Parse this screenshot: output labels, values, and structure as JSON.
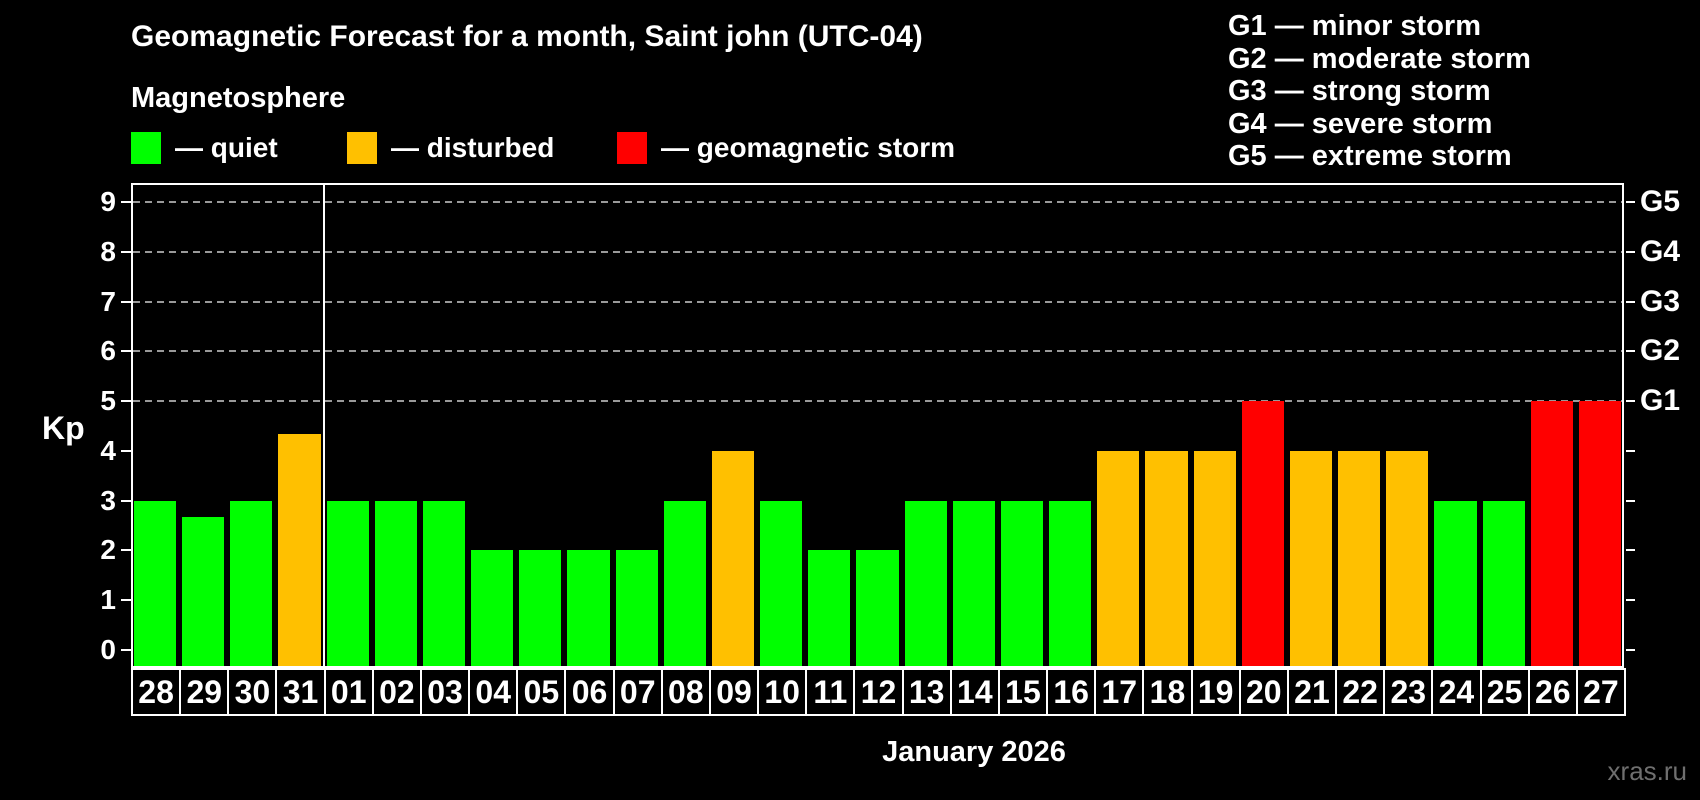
{
  "header": {
    "title": "Geomagnetic Forecast for a month, Saint john (UTC-04)",
    "subtitle": "Magnetosphere"
  },
  "legend": {
    "items": [
      {
        "label": "— quiet",
        "status": "quiet",
        "color": "#00ff00"
      },
      {
        "label": "— disturbed",
        "status": "disturbed",
        "color": "#ffc000"
      },
      {
        "label": "— geomagnetic storm",
        "status": "storm",
        "color": "#ff0000"
      }
    ]
  },
  "storm_legend": [
    "G1 — minor storm",
    "G2 — moderate storm",
    "G3 — strong storm",
    "G4 — severe storm",
    "G5 — extreme storm"
  ],
  "watermark": "xras.ru",
  "colors": {
    "background": "#000000",
    "axis": "#ffffff",
    "grid": "#9a9a9a",
    "text": "#ffffff",
    "watermark": "#6f6f6f"
  },
  "chart_data": {
    "type": "bar",
    "title": "Geomagnetic Forecast for a month, Saint john (UTC-04)",
    "ylabel": "Kp",
    "xlabel": "January 2026",
    "ylim": [
      0,
      9.4
    ],
    "yticks": [
      0,
      1,
      2,
      3,
      4,
      5,
      6,
      7,
      8,
      9
    ],
    "gridline_kp_levels": [
      5,
      6,
      7,
      8,
      9
    ],
    "grid": "horizontal dashed lines at storm levels G1–G5 only",
    "legend_position": "top-left",
    "right_axis": [
      {
        "kp": 5,
        "label": "G1"
      },
      {
        "kp": 6,
        "label": "G2"
      },
      {
        "kp": 7,
        "label": "G3"
      },
      {
        "kp": 8,
        "label": "G4"
      },
      {
        "kp": 9,
        "label": "G5"
      }
    ],
    "categories": [
      "28",
      "29",
      "30",
      "31",
      "01",
      "02",
      "03",
      "04",
      "05",
      "06",
      "07",
      "08",
      "09",
      "10",
      "11",
      "12",
      "13",
      "14",
      "15",
      "16",
      "17",
      "18",
      "19",
      "20",
      "21",
      "22",
      "23",
      "24",
      "25",
      "26",
      "27"
    ],
    "values": [
      3,
      2.67,
      3,
      4.33,
      3,
      3,
      3,
      2,
      2,
      2,
      2,
      3,
      4,
      3,
      2,
      2,
      3,
      3,
      3,
      3,
      4,
      4,
      4,
      5,
      4,
      4,
      4,
      3,
      3,
      5,
      5
    ],
    "statuses": [
      "quiet",
      "quiet",
      "quiet",
      "disturbed",
      "quiet",
      "quiet",
      "quiet",
      "quiet",
      "quiet",
      "quiet",
      "quiet",
      "quiet",
      "disturbed",
      "quiet",
      "quiet",
      "quiet",
      "quiet",
      "quiet",
      "quiet",
      "quiet",
      "disturbed",
      "disturbed",
      "disturbed",
      "storm",
      "disturbed",
      "disturbed",
      "disturbed",
      "quiet",
      "quiet",
      "storm",
      "storm"
    ],
    "status_colors": {
      "quiet": "#00ff00",
      "disturbed": "#ffc000",
      "storm": "#ff0000"
    },
    "month_separator_after_index": 3
  }
}
